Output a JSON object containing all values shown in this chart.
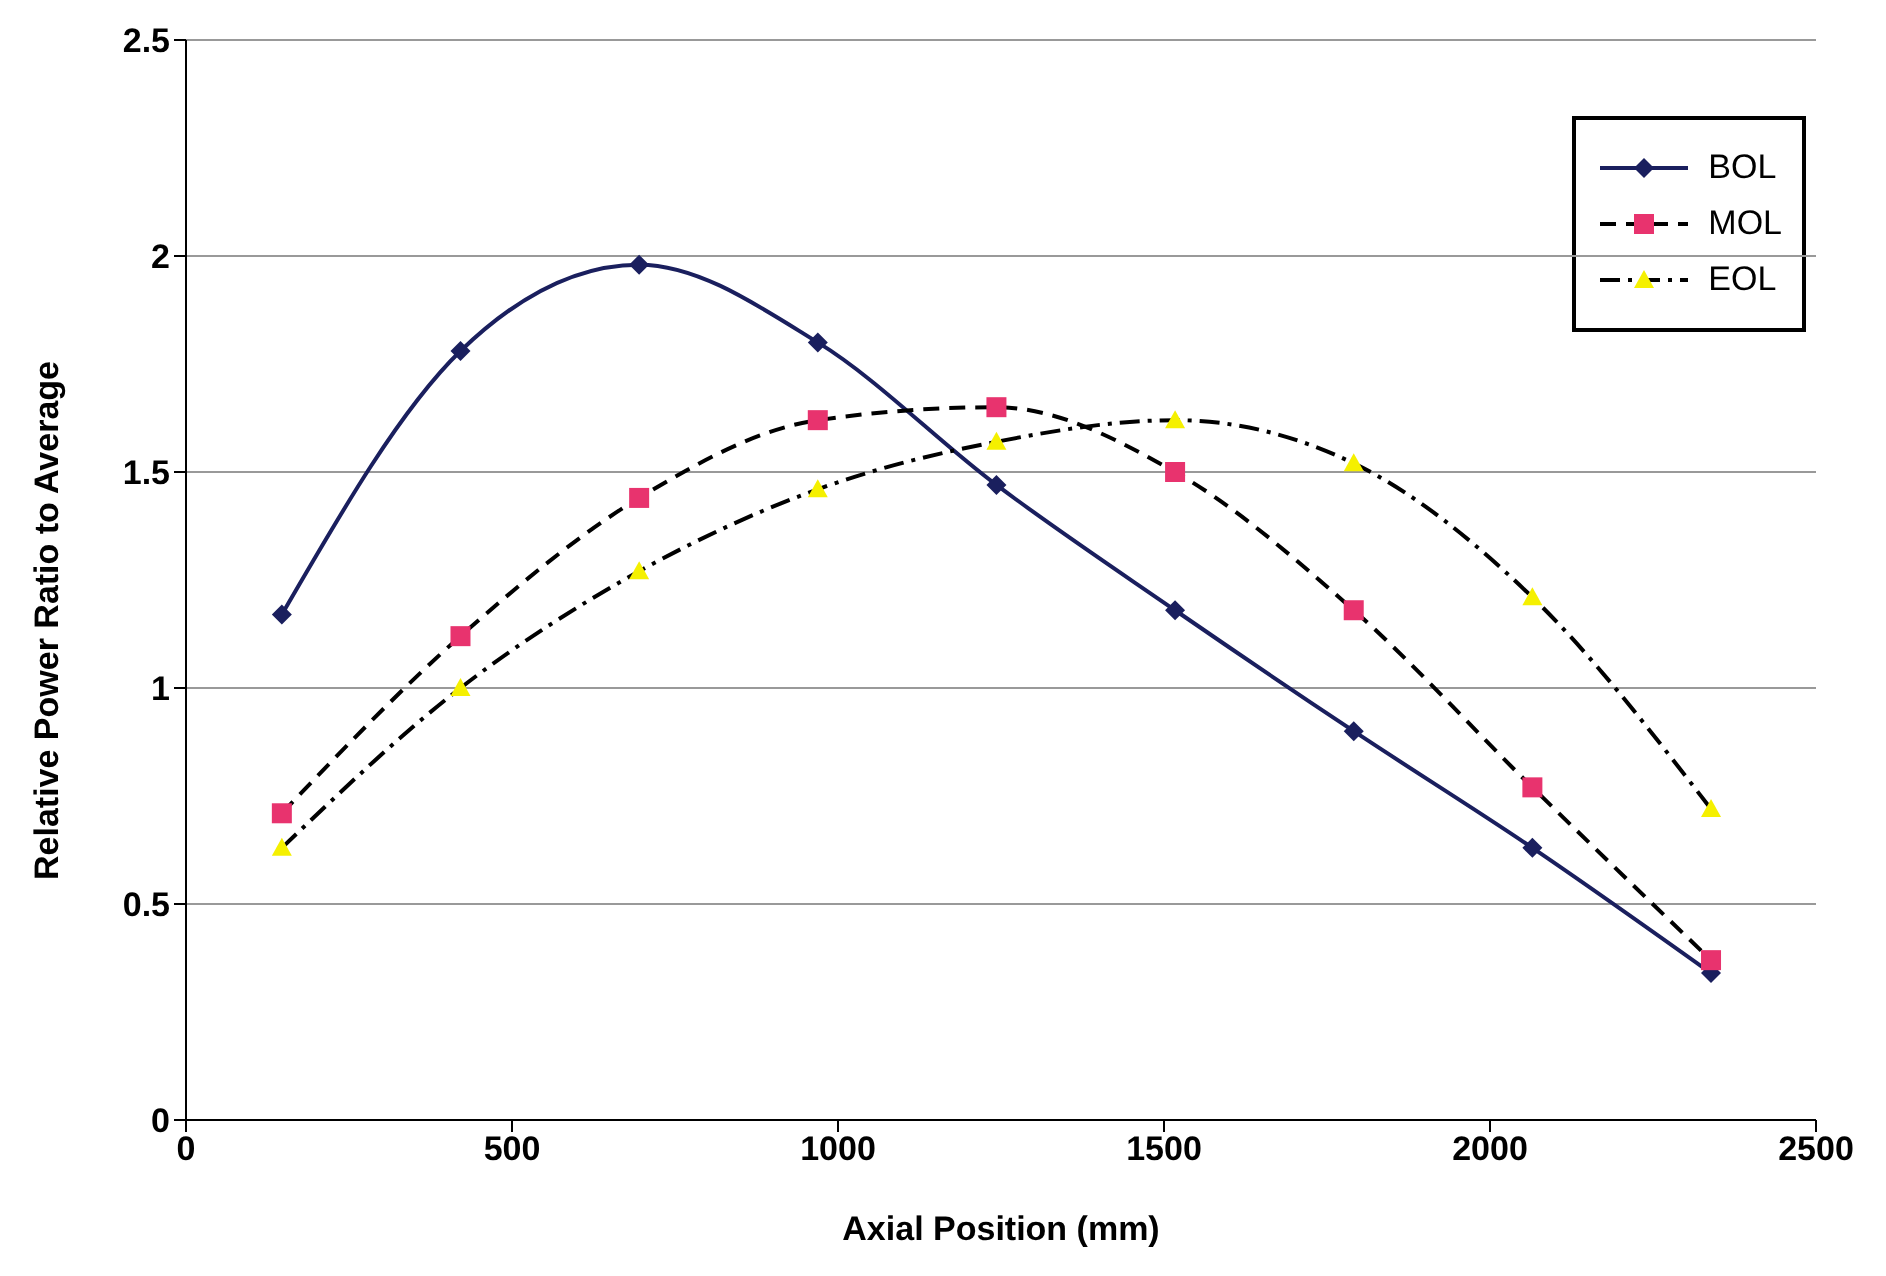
{
  "chart_data": {
    "type": "line",
    "xlabel": "Axial Position (mm)",
    "ylabel": "Relative Power Ratio to Average",
    "xlim": [
      0,
      2500
    ],
    "xticks": [
      0,
      500,
      1000,
      1500,
      2000,
      2500
    ],
    "ylim": [
      0,
      2.5
    ],
    "yticks": [
      0,
      0.5,
      1,
      1.5,
      2,
      2.5
    ],
    "grid": "y",
    "legend": "top right",
    "x": [
      147,
      421,
      695,
      969,
      1243,
      1517,
      1791,
      2065,
      2339
    ],
    "series": [
      {
        "name": "BOL",
        "color": "#1a1f5e",
        "marker": "diamond",
        "line_style": "solid",
        "values": [
          1.17,
          1.78,
          1.98,
          1.8,
          1.47,
          1.18,
          0.9,
          0.63,
          0.34
        ]
      },
      {
        "name": "MOL",
        "color": "#000000",
        "colors": [
          "#e8336e",
          "#e8336e",
          "#e8336e",
          "#e8336e",
          "#e8336e",
          "#e8336e",
          "#e8336e",
          "#e8336e",
          "#e8336e"
        ],
        "marker": "square",
        "line_style": "dashed",
        "values": [
          0.71,
          1.12,
          1.44,
          1.62,
          1.65,
          1.5,
          1.18,
          0.77,
          0.37
        ]
      },
      {
        "name": "EOL",
        "color": "#000000",
        "colors": [
          "#f5f000",
          "#f5f000",
          "#f5f000",
          "#f5f000",
          "#f5f000",
          "#f5f000",
          "#f5f000",
          "#f5f000",
          "#f5f000"
        ],
        "marker": "triangle",
        "line_style": "dotted",
        "values": [
          0.63,
          1.0,
          1.27,
          1.46,
          1.57,
          1.62,
          1.52,
          1.21,
          0.72
        ]
      }
    ]
  }
}
